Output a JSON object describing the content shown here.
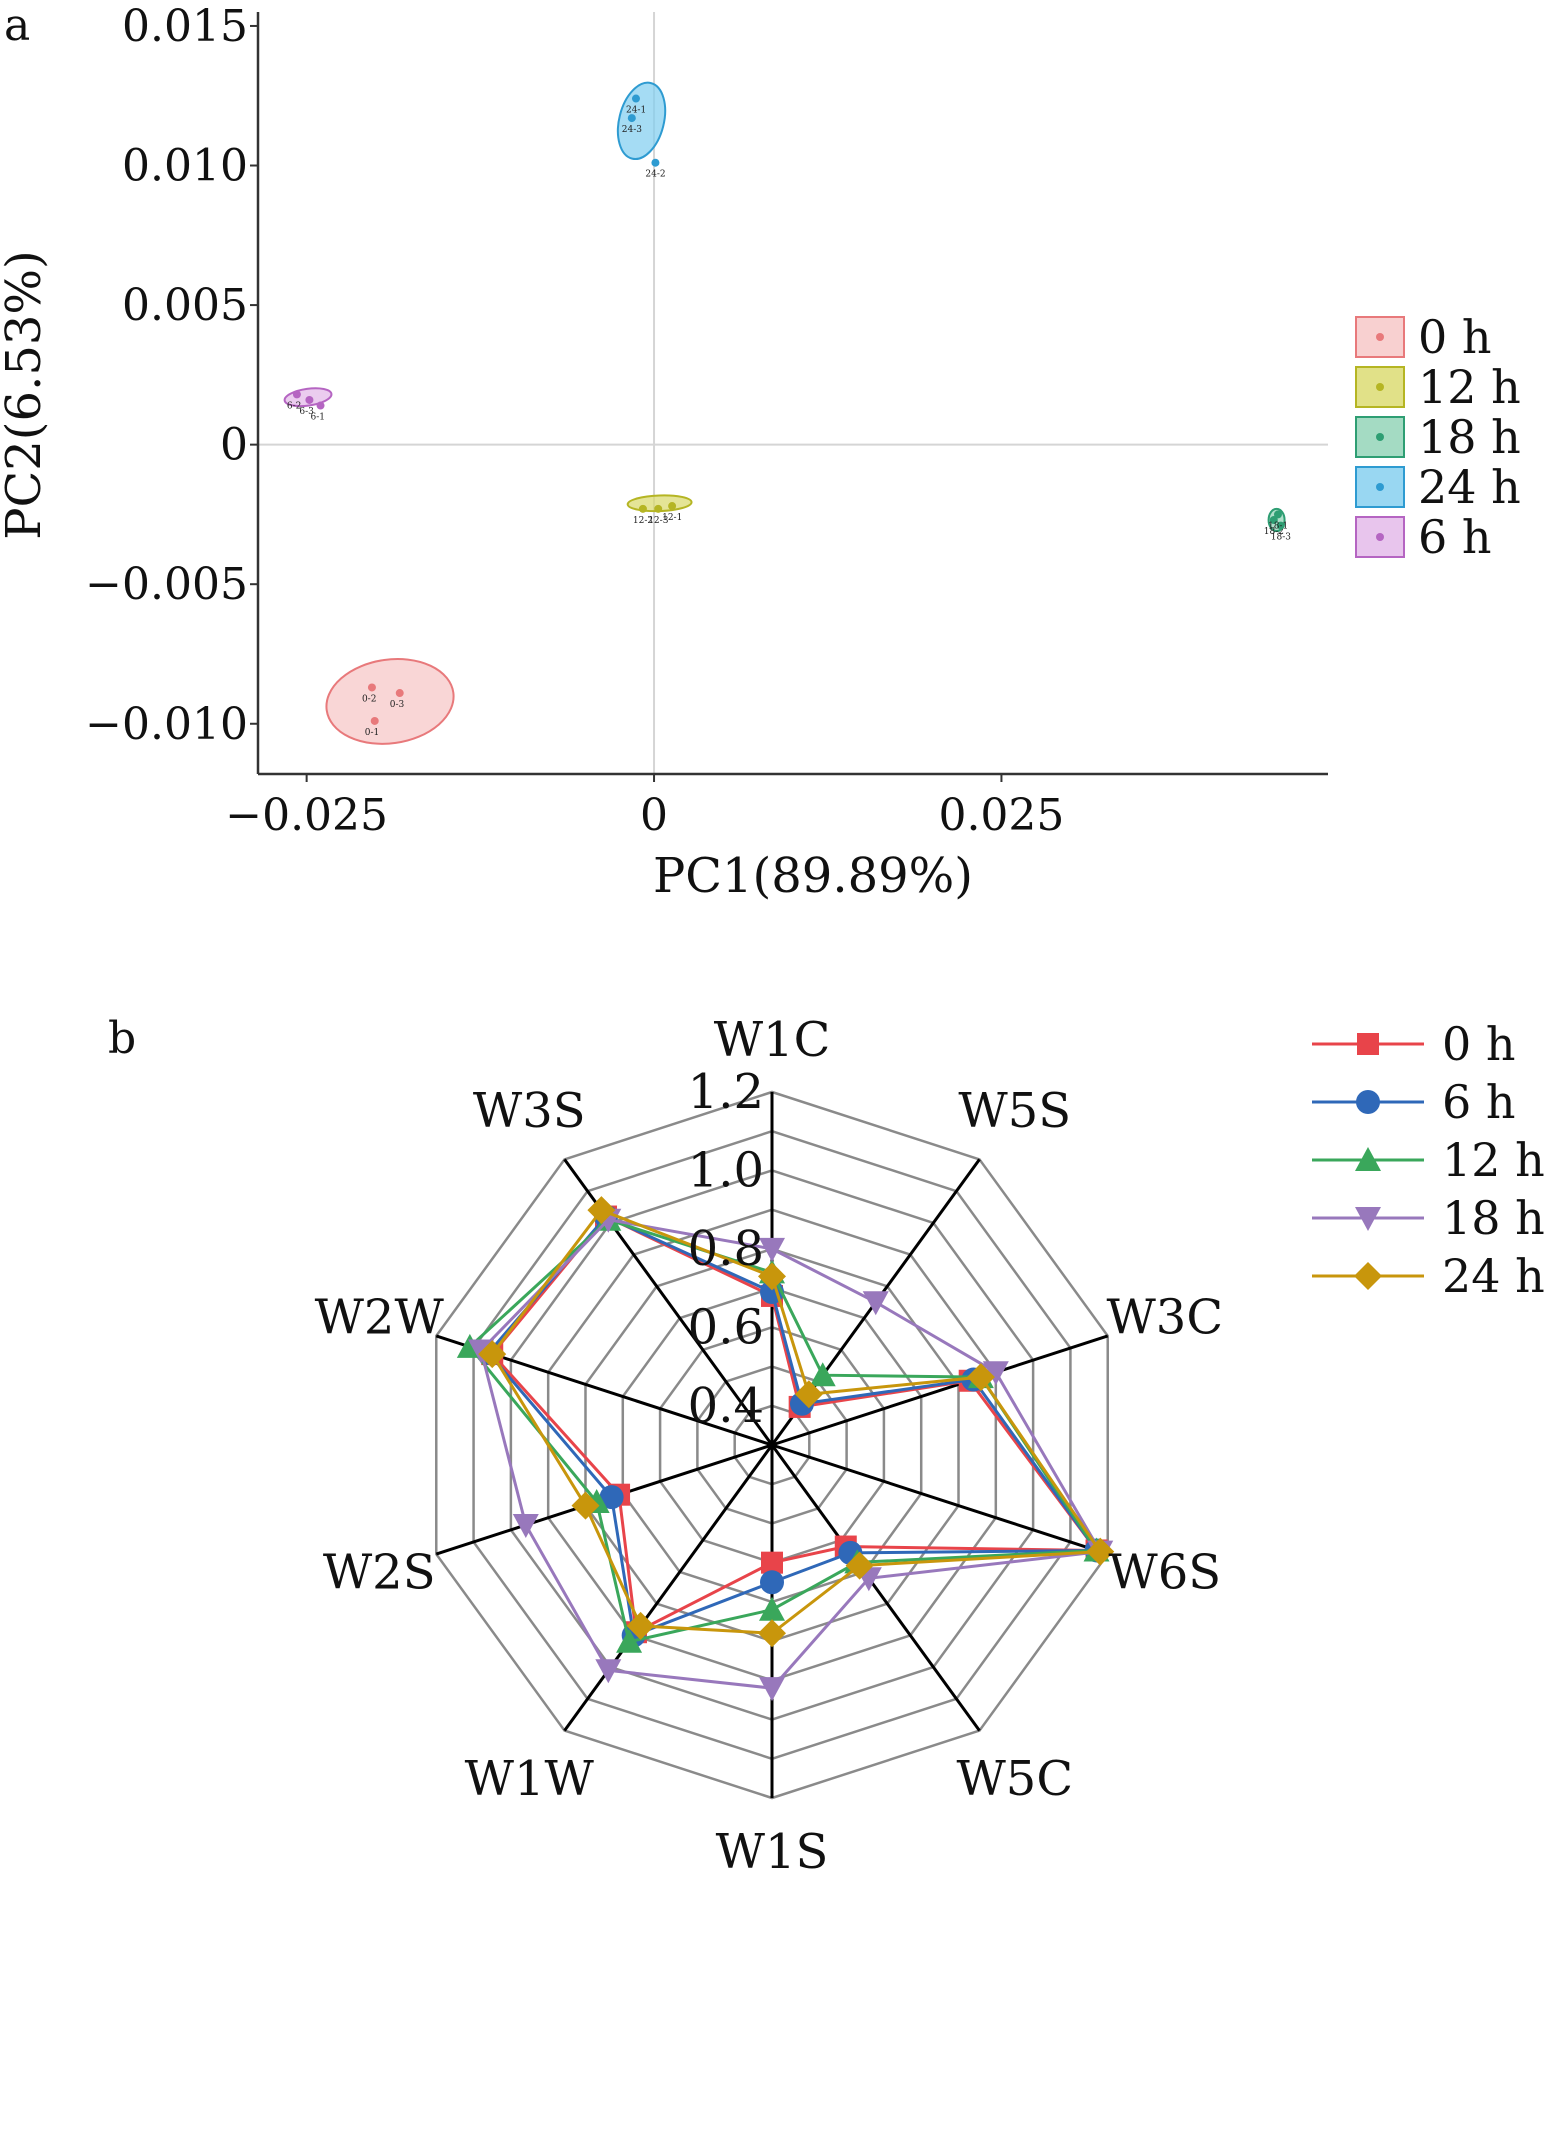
{
  "chart_data": [
    {
      "type": "scatter",
      "panel_label": "a",
      "xlabel": "PC1(89.89%)",
      "ylabel": "PC2(6.53%)",
      "xlim": [
        -0.0285,
        0.0485
      ],
      "ylim": [
        -0.0118,
        0.0155
      ],
      "xticks": [
        -0.025,
        0,
        0.025
      ],
      "xtick_labels": [
        "−0.025",
        "0",
        "0.025"
      ],
      "yticks": [
        0.015,
        0.01,
        0.005,
        0,
        -0.005,
        -0.01
      ],
      "ytick_labels": [
        "0.015",
        "0.010",
        "0.005",
        "0",
        "−0.005",
        "−0.010"
      ],
      "zero_lines": true,
      "legend_position": "right",
      "series": [
        {
          "name": "0 h",
          "color": "#e8797b",
          "fill": "#f6c4c4",
          "points": [
            {
              "x": -0.0203,
              "y": -0.0087,
              "label": "0-2"
            },
            {
              "x": -0.0183,
              "y": -0.0089,
              "label": "0-3"
            },
            {
              "x": -0.0201,
              "y": -0.0099,
              "label": "0-1"
            }
          ],
          "ellipse": {
            "cx": -0.019,
            "cy": -0.0092,
            "rx": 0.0046,
            "ry": 0.0015,
            "angle": -8
          }
        },
        {
          "name": "12 h",
          "color": "#b5b523",
          "fill": "#d9d96a",
          "points": [
            {
              "x": -0.0008,
              "y": -0.0023,
              "label": "12-2"
            },
            {
              "x": 0.0003,
              "y": -0.0023,
              "label": "12-3"
            },
            {
              "x": 0.0013,
              "y": -0.0022,
              "label": "12-1"
            }
          ],
          "ellipse": {
            "cx": 0.0004,
            "cy": -0.0021,
            "rx": 0.0023,
            "ry": 0.00028,
            "angle": -2
          }
        },
        {
          "name": "18 h",
          "color": "#2e9e73",
          "fill": "#8dd2b4",
          "points": [
            {
              "x": 0.0446,
              "y": -0.0027,
              "label": "18-2"
            },
            {
              "x": 0.0451,
              "y": -0.0029,
              "label": "18-3"
            },
            {
              "x": 0.0449,
              "y": -0.0025,
              "label": "18-1"
            }
          ],
          "ellipse": {
            "cx": 0.0448,
            "cy": -0.0027,
            "rx": 0.0005,
            "ry": 0.0004,
            "angle": 0
          }
        },
        {
          "name": "24 h",
          "color": "#2e9bd1",
          "fill": "#7fcdef",
          "points": [
            {
              "x": -0.0013,
              "y": 0.0124,
              "label": "24-1"
            },
            {
              "x": -0.0016,
              "y": 0.0117,
              "label": "24-3"
            },
            {
              "x": 0.0001,
              "y": 0.0101,
              "label": "24-2"
            }
          ],
          "ellipse": {
            "cx": -0.0009,
            "cy": 0.0116,
            "rx": 0.0028,
            "ry": 0.0008,
            "angle": -76
          }
        },
        {
          "name": "6 h",
          "color": "#b565c2",
          "fill": "#e2b7e8",
          "points": [
            {
              "x": -0.0257,
              "y": 0.0018,
              "label": "6-2"
            },
            {
              "x": -0.0248,
              "y": 0.0016,
              "label": "6-3"
            },
            {
              "x": -0.024,
              "y": 0.0014,
              "label": "6-1"
            }
          ],
          "ellipse": {
            "cx": -0.0249,
            "cy": 0.0017,
            "rx": 0.0017,
            "ry": 0.0003,
            "angle": -8
          }
        }
      ]
    },
    {
      "type": "radar",
      "panel_label": "b",
      "axes": [
        "W1C",
        "W5S",
        "W3C",
        "W6S",
        "W5C",
        "W1S",
        "W1W",
        "W2S",
        "W2W",
        "W3S"
      ],
      "rlim": [
        0.3,
        1.2
      ],
      "rticks": [
        0.4,
        0.6,
        0.8,
        1.0,
        1.2
      ],
      "rtick_labels": [
        "0.4",
        "0.6",
        "0.8",
        "1.0",
        "1.2"
      ],
      "grid_rings": [
        0.4,
        0.5,
        0.6,
        0.7,
        0.8,
        0.9,
        1.0,
        1.1,
        1.2
      ],
      "legend_position": "top-right",
      "series": [
        {
          "name": "0 h",
          "color": "#e8444a",
          "marker": "square",
          "values": [
            0.68,
            0.42,
            0.83,
            1.17,
            0.62,
            0.6,
            0.89,
            0.71,
            1.05,
            1.02
          ]
        },
        {
          "name": "6 h",
          "color": "#2f68b8",
          "marker": "circle",
          "values": [
            0.69,
            0.43,
            0.84,
            1.17,
            0.64,
            0.65,
            0.9,
            0.73,
            1.06,
            1.02
          ]
        },
        {
          "name": "12 h",
          "color": "#3aa75b",
          "marker": "triangle-up",
          "values": [
            0.74,
            0.52,
            0.86,
            1.17,
            0.67,
            0.72,
            0.92,
            0.77,
            1.11,
            1.01
          ]
        },
        {
          "name": "18 h",
          "color": "#9878bc",
          "marker": "triangle-down",
          "values": [
            0.8,
            0.75,
            0.9,
            1.18,
            0.72,
            0.92,
            1.01,
            0.96,
            1.08,
            1.01
          ]
        },
        {
          "name": "24 h",
          "color": "#c8960c",
          "marker": "diamond",
          "values": [
            0.73,
            0.46,
            0.86,
            1.18,
            0.68,
            0.78,
            0.87,
            0.8,
            1.05,
            1.04
          ]
        }
      ]
    }
  ]
}
